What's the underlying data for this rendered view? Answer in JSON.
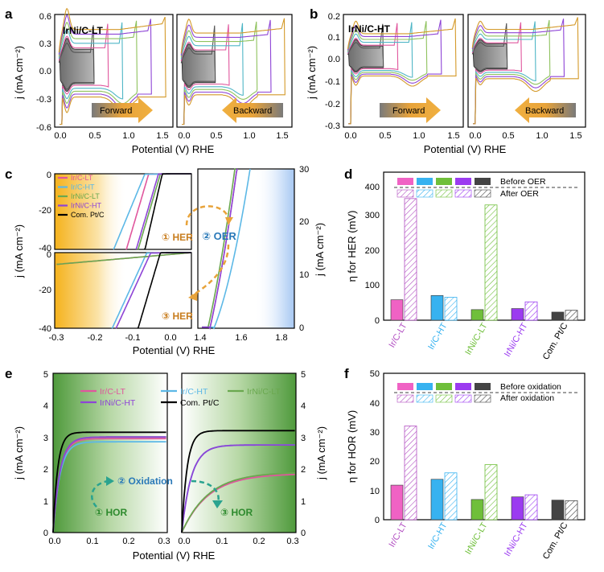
{
  "panels": {
    "a": {
      "letter": "a",
      "label": "IrNi/C-LT",
      "forward": "Forward",
      "backward": "Backward"
    },
    "b": {
      "letter": "b",
      "label": "IrNi/C-HT",
      "forward": "Forward",
      "backward": "Backward"
    },
    "c": {
      "letter": "c",
      "step1": "① HER",
      "step2": "② OER",
      "step3": "③ HER"
    },
    "d": {
      "letter": "d",
      "before": "Before OER",
      "after": "After OER"
    },
    "e": {
      "letter": "e",
      "step1": "① HOR",
      "step2": "② Oxidation",
      "step3": "③ HOR"
    },
    "f": {
      "letter": "f",
      "before": "Before oxidation",
      "after": "After oxidation"
    }
  },
  "colors": {
    "Ir/C-LT": "#e0569d",
    "Ir/C-HT": "#5cb8e6",
    "IrNi/C-LT": "#6aa84f",
    "IrNi/C-HT": "#8e44d6",
    "Com. Pt/C": "#000000",
    "hatch_ir_lt": "#b24fc2",
    "arrow": "#e8a33a",
    "her_text": "#c87d1e",
    "oer_text": "#2a79b8",
    "green_text": "#2e8a2e",
    "teal_arrow": "#2aa38f"
  },
  "chart_data": [
    {
      "id": "a",
      "type": "line",
      "title": "IrNi/C-LT cyclic voltammetry (forward / backward)",
      "xlabel": "Potential (V) RHE",
      "ylabel": "j (mA cm⁻²)",
      "xlim": [
        -0.05,
        1.6
      ],
      "ylim": [
        -0.6,
        0.6
      ],
      "xticks": [
        "0.0",
        "0.5",
        "1.0",
        "1.5"
      ],
      "yticks": [
        "-0.6",
        "-0.3",
        "0.0",
        "0.3",
        "0.6"
      ],
      "upper_potentials_V": [
        0.5,
        0.7,
        0.9,
        1.1,
        1.3,
        1.5
      ]
    },
    {
      "id": "b",
      "type": "line",
      "title": "IrNi/C-HT cyclic voltammetry (forward / backward)",
      "xlabel": "Potential (V) RHE",
      "ylabel": "j (mA cm⁻²)",
      "xlim": [
        -0.05,
        1.6
      ],
      "ylim": [
        -0.3,
        0.2
      ],
      "xticks": [
        "0.0",
        "0.5",
        "1.0",
        "1.5"
      ],
      "yticks": [
        "-0.3",
        "-0.2",
        "-0.1",
        "0.0",
        "0.1",
        "0.2"
      ],
      "upper_potentials_V": [
        0.5,
        0.7,
        0.9,
        1.1,
        1.3,
        1.5
      ]
    },
    {
      "id": "c",
      "type": "line",
      "xlabel": "Potential (V) RHE",
      "ylabel_left": "j (mA cm⁻²)",
      "ylabel_right": "j (mA cm⁻²)",
      "her_xlim": [
        -0.3,
        0.05
      ],
      "her_ylim": [
        -40,
        0
      ],
      "her_xticks": [
        "-0.3",
        "-0.2",
        "-0.1",
        "0.0"
      ],
      "her_yticks": [
        "0",
        "-20",
        "-40"
      ],
      "oer_xlim": [
        1.4,
        1.88
      ],
      "oer_ylim": [
        0,
        30
      ],
      "oer_xticks": [
        "1.4",
        "1.6",
        "1.8"
      ],
      "oer_yticks": [
        "0",
        "10",
        "20",
        "30"
      ],
      "legend": [
        "Ir/C-LT",
        "Ir/C-HT",
        "IrNi/C-LT",
        "IrNi/C-HT",
        "Com. Pt/C"
      ],
      "her_onset_before_V": {
        "Ir/C-LT": -0.06,
        "Ir/C-HT": -0.07,
        "IrNi/C-LT": -0.03,
        "IrNi/C-HT": -0.035,
        "Com. Pt/C": -0.025
      },
      "her_onset_after_V": {
        "Ir/C-LT": -0.34,
        "Ir/C-HT": -0.065,
        "IrNi/C-LT": -0.33,
        "IrNi/C-HT": -0.055,
        "Com. Pt/C": -0.03
      },
      "oer_onset_V": {
        "Ir/C-LT": 1.46,
        "Ir/C-HT": 1.48,
        "IrNi/C-LT": 1.45,
        "IrNi/C-HT": 1.46
      }
    },
    {
      "id": "d",
      "type": "bar",
      "categories": [
        "Ir/C-LT",
        "Ir/C-HT",
        "IrNi/C-LT",
        "IrNi/C-HT",
        "Com. Pt/C"
      ],
      "series": [
        {
          "name": "Before OER",
          "values": [
            58,
            70,
            30,
            33,
            23
          ]
        },
        {
          "name": "After OER",
          "values": [
            345,
            65,
            327,
            52,
            28
          ]
        }
      ],
      "ylabel": "η for HER (mV)",
      "ylim": [
        0,
        420
      ],
      "yticks": [
        "0",
        "100",
        "200",
        "300",
        "400"
      ]
    },
    {
      "id": "e",
      "type": "line",
      "xlabel": "Potential (V) RHE",
      "ylabel_left": "j (mA cm⁻²)",
      "ylabel_right": "j (mA cm⁻²)",
      "xlim": [
        0.0,
        0.3
      ],
      "ylim": [
        0,
        5
      ],
      "xticks": [
        "0.0",
        "0.1",
        "0.2",
        "0.3"
      ],
      "yticks": [
        "0",
        "1",
        "2",
        "3",
        "4",
        "5"
      ],
      "legend": [
        "Ir/C-LT",
        "Ir/C-HT",
        "IrNi/C-LT",
        "IrNi/C-HT",
        "Com. Pt/C"
      ],
      "plateau_before": {
        "Ir/C-LT": 2.95,
        "Ir/C-HT": 2.85,
        "IrNi/C-LT": 3.0,
        "IrNi/C-HT": 3.0,
        "Com. Pt/C": 3.15
      },
      "plateau_after": {
        "Ir/C-LT": 1.85,
        "Ir/C-HT": 2.75,
        "IrNi/C-LT": 1.9,
        "IrNi/C-HT": 2.75,
        "Com. Pt/C": 3.2
      }
    },
    {
      "id": "f",
      "type": "bar",
      "categories": [
        "Ir/C-LT",
        "Ir/C-HT",
        "IrNi/C-LT",
        "IrNi/C-HT",
        "Com. Pt/C"
      ],
      "series": [
        {
          "name": "Before oxidation",
          "values": [
            11.8,
            13.8,
            6.9,
            7.8,
            6.7
          ]
        },
        {
          "name": "After oxidation",
          "values": [
            32,
            16,
            18.8,
            8.5,
            6.5
          ]
        }
      ],
      "ylabel": "η for HOR (mV)",
      "ylim": [
        0,
        50
      ],
      "yticks": [
        "0",
        "10",
        "20",
        "30",
        "40",
        "50"
      ]
    }
  ]
}
